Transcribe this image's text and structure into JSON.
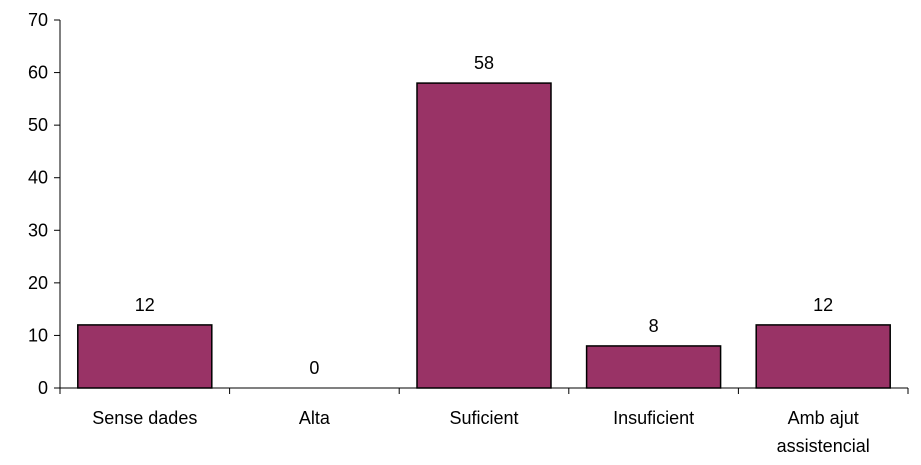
{
  "chart_data": {
    "type": "bar",
    "categories": [
      [
        "Sense dades"
      ],
      [
        "Alta"
      ],
      [
        "Suficient"
      ],
      [
        "Insuficient"
      ],
      [
        "Amb ajut",
        "assistencial"
      ]
    ],
    "values": [
      12,
      0,
      58,
      8,
      12
    ],
    "data_labels": [
      "12",
      "0",
      "58",
      "8",
      "12"
    ],
    "y_ticks": [
      0,
      10,
      20,
      30,
      40,
      50,
      60,
      70
    ],
    "y_tick_labels": [
      "0",
      "10",
      "20",
      "30",
      "40",
      "50",
      "60",
      "70"
    ],
    "ylim": [
      0,
      70
    ],
    "grid": false,
    "legend": "none",
    "colors": {
      "bar_fill": "#993366",
      "bar_stroke": "#000000",
      "axis": "#000000"
    }
  }
}
